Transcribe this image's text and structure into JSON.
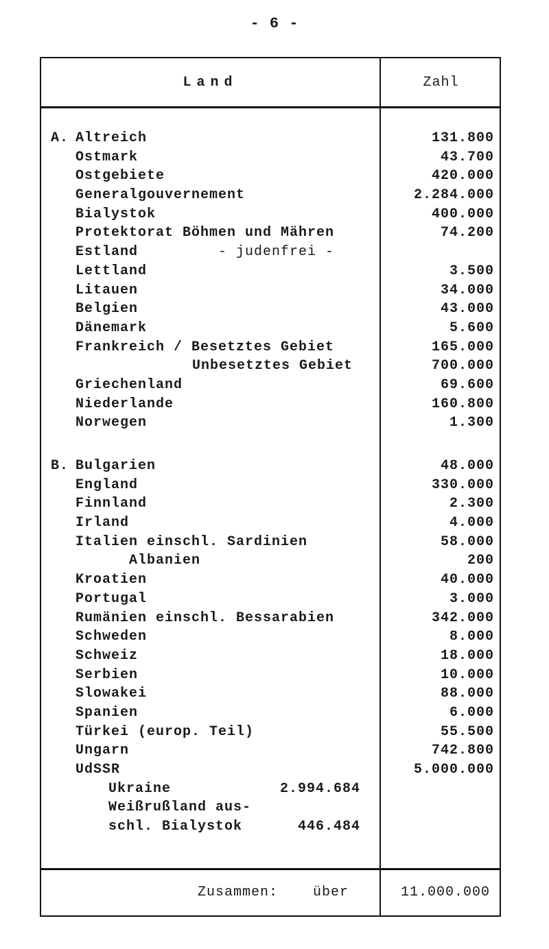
{
  "page_number": "- 6 -",
  "table": {
    "headers": {
      "land": "Land",
      "zahl": "Zahl"
    },
    "section_a": {
      "prefix": "A.",
      "rows": [
        {
          "label": "Altreich",
          "value": "131.800"
        },
        {
          "label": "Ostmark",
          "value": "43.700"
        },
        {
          "label": "Ostgebiete",
          "value": "420.000"
        },
        {
          "label": "Generalgouvernement",
          "value": "2.284.000"
        },
        {
          "label": "Bialystok",
          "value": "400.000"
        },
        {
          "label": "Protektorat Böhmen und Mähren",
          "value": "74.200"
        },
        {
          "label": "Estland",
          "note": "- judenfrei -",
          "value": ""
        },
        {
          "label": "Lettland",
          "value": "3.500"
        },
        {
          "label": "Litauen",
          "value": "34.000"
        },
        {
          "label": "Belgien",
          "value": "43.000"
        },
        {
          "label": "Dänemark",
          "value": "5.600"
        },
        {
          "label": "Frankreich / Besetztes Gebiet",
          "value": "165.000"
        },
        {
          "label": "Unbesetztes Gebiet",
          "value": "700.000"
        },
        {
          "label": "Griechenland",
          "value": "69.600"
        },
        {
          "label": "Niederlande",
          "value": "160.800"
        },
        {
          "label": "Norwegen",
          "value": "1.300"
        }
      ]
    },
    "section_b": {
      "prefix": "B.",
      "rows": [
        {
          "label": "Bulgarien",
          "value": "48.000"
        },
        {
          "label": "England",
          "value": "330.000"
        },
        {
          "label": "Finnland",
          "value": "2.300"
        },
        {
          "label": "Irland",
          "value": "4.000"
        },
        {
          "label": "Italien einschl. Sardinien",
          "value": "58.000"
        },
        {
          "label": "Albanien",
          "value": "200"
        },
        {
          "label": "Kroatien",
          "value": "40.000"
        },
        {
          "label": "Portugal",
          "value": "3.000"
        },
        {
          "label": "Rumänien einschl. Bessarabien",
          "value": "342.000"
        },
        {
          "label": "Schweden",
          "value": "8.000"
        },
        {
          "label": "Schweiz",
          "value": "18.000"
        },
        {
          "label": "Serbien",
          "value": "10.000"
        },
        {
          "label": "Slowakei",
          "value": "88.000"
        },
        {
          "label": "Spanien",
          "value": "6.000"
        },
        {
          "label": "Türkei (europ. Teil)",
          "value": "55.500"
        },
        {
          "label": "Ungarn",
          "value": "742.800"
        },
        {
          "label": "UdSSR",
          "value": "5.000.000"
        }
      ],
      "udssr_breakdown": [
        {
          "label": "Ukraine",
          "value": "2.994.684"
        },
        {
          "label": "Weißrußland aus-",
          "value": ""
        },
        {
          "label": "schl. Bialystok",
          "value": "446.484"
        }
      ]
    },
    "total": {
      "label": "Zusammen:",
      "qualifier": "über",
      "value": "11.000.000"
    }
  }
}
